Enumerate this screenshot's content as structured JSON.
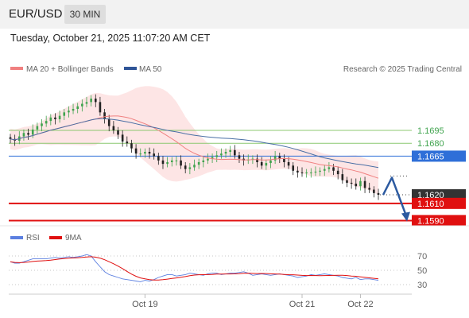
{
  "header": {
    "symbol": "EUR/USD",
    "timeframe": "30 MIN"
  },
  "date_text": "Tuesday, October 21, 2025 11:07:20 AM CET",
  "legend": {
    "ma20": "MA 20 + Bollinger Bands",
    "ma50": "MA 50",
    "source": "Research © 2025 Trading Central",
    "rsi": "RSI",
    "rsi_ma": "9MA"
  },
  "colors": {
    "up": "#3fa34d",
    "down": "#222222",
    "ma20": "#f08080",
    "band": "#fde0e0",
    "ma50": "#4a6fa5",
    "support": "#e01010",
    "resistance": "#8cc870",
    "pivot": "#2f6fd8",
    "rsi": "#5b7fe0",
    "rsi_ma": "#e01010",
    "arrow": "#2c5aa0"
  },
  "chart_data": {
    "type": "candlestick",
    "title": "EUR/USD",
    "timeframe": "30 MIN",
    "x_ticks": [
      "Oct 19",
      "Oct 21",
      "Oct 22"
    ],
    "x_tick_index": [
      30,
      65,
      78
    ],
    "y_range": [
      1.1583,
      1.1745
    ],
    "levels": [
      {
        "value": 1.1695,
        "label": "1.1695",
        "kind": "resistance"
      },
      {
        "value": 1.168,
        "label": "1.1680",
        "kind": "resistance"
      },
      {
        "value": 1.1665,
        "label": "1.1665",
        "kind": "pivot"
      },
      {
        "value": 1.162,
        "label": "1.1620",
        "kind": "last"
      },
      {
        "value": 1.161,
        "label": "1.1610",
        "kind": "support"
      },
      {
        "value": 1.159,
        "label": "1.1590",
        "kind": "support"
      }
    ],
    "closes": [
      1.1685,
      1.1683,
      1.1688,
      1.1692,
      1.169,
      1.1696,
      1.17,
      1.1703,
      1.1706,
      1.171,
      1.1708,
      1.1712,
      1.1716,
      1.1718,
      1.172,
      1.1723,
      1.1726,
      1.1728,
      1.1732,
      1.1728,
      1.1716,
      1.1708,
      1.17,
      1.1695,
      1.169,
      1.1682,
      1.168,
      1.1674,
      1.1668,
      1.1668,
      1.167,
      1.1668,
      1.1665,
      1.166,
      1.1656,
      1.1658,
      1.166,
      1.166,
      1.1654,
      1.165,
      1.1652,
      1.1655,
      1.1658,
      1.166,
      1.1662,
      1.1664,
      1.1666,
      1.1668,
      1.167,
      1.1672,
      1.1666,
      1.1662,
      1.166,
      1.1661,
      1.1662,
      1.1658,
      1.1654,
      1.1657,
      1.166,
      1.1665,
      1.1662,
      1.1658,
      1.1654,
      1.1648,
      1.1646,
      1.1645,
      1.1646,
      1.1646,
      1.1647,
      1.1648,
      1.165,
      1.1652,
      1.1648,
      1.1644,
      1.1637,
      1.1634,
      1.1633,
      1.163,
      1.1636,
      1.1628,
      1.1626,
      1.1622,
      1.162
    ],
    "projection": [
      1.162,
      1.164,
      1.159
    ],
    "rsi": {
      "range": [
        20,
        80
      ],
      "ticks": [
        70,
        50,
        30
      ],
      "values": [
        62,
        60,
        60,
        62,
        64,
        66,
        66,
        66,
        66,
        67,
        68,
        67,
        68,
        69,
        68,
        69,
        70,
        72,
        70,
        62,
        55,
        48,
        44,
        42,
        40,
        38,
        37,
        36,
        35,
        34,
        36,
        35,
        37,
        40,
        42,
        44,
        44,
        42,
        43,
        44,
        46,
        45,
        44,
        43,
        45,
        46,
        46,
        44,
        45,
        46,
        46,
        47,
        48,
        46,
        43,
        44,
        45,
        44,
        43,
        44,
        45,
        44,
        43,
        42,
        40,
        41,
        42,
        44,
        43,
        44,
        45,
        44,
        43,
        42,
        40,
        39,
        38,
        40,
        37,
        38,
        38,
        37,
        36
      ]
    }
  }
}
